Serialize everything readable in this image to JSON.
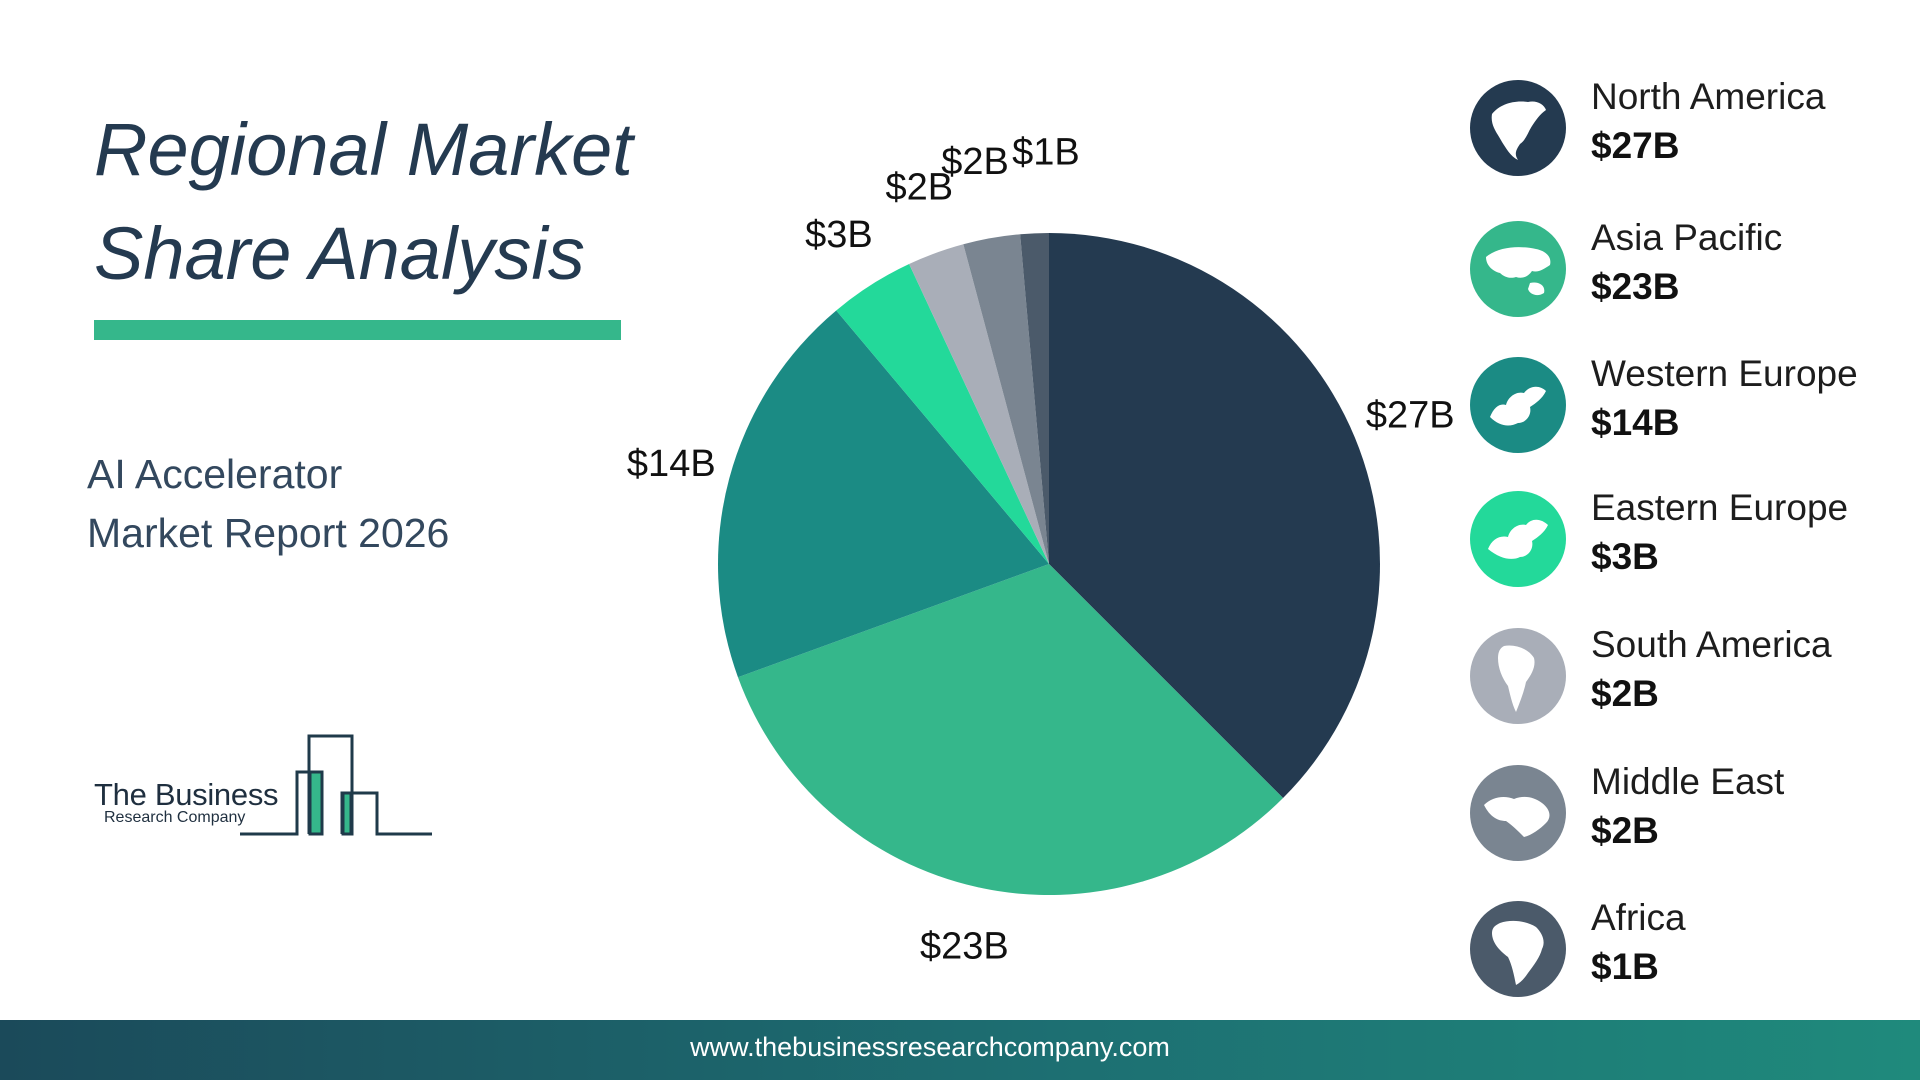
{
  "title": {
    "line1": "Regional Market",
    "line2": "Share Analysis"
  },
  "subtitle": {
    "line1": "AI Accelerator",
    "line2": "Market Report 2026"
  },
  "logo": {
    "main": "The Business",
    "sub": "Research Company"
  },
  "footer": {
    "url": "www.thebusinessresearchcompany.com"
  },
  "chart_data": {
    "type": "pie",
    "start_angle": "12 o'clock",
    "direction": "clockwise",
    "slices": [
      {
        "name": "North America",
        "value": 27,
        "label": "$27B",
        "color": "#243a50"
      },
      {
        "name": "Asia Pacific",
        "value": 23,
        "label": "$23B",
        "color": "#35b78b"
      },
      {
        "name": "Western Europe",
        "value": 14,
        "label": "$14B",
        "color": "#1b8b84"
      },
      {
        "name": "Eastern Europe",
        "value": 3,
        "label": "$3B",
        "color": "#23d99a"
      },
      {
        "name": "South America",
        "value": 2,
        "label": "$2B",
        "color": "#a9aeb8"
      },
      {
        "name": "Middle East",
        "value": 2,
        "label": "$2B",
        "color": "#7a8591"
      },
      {
        "name": "Africa",
        "value": 1,
        "label": "$1B",
        "color": "#4b5a6a"
      }
    ]
  },
  "legend": {
    "items": [
      {
        "name": "North America",
        "value": "$27B",
        "color": "#243a50",
        "icon": "north-america-icon"
      },
      {
        "name": "Asia Pacific",
        "value": "$23B",
        "color": "#35b78b",
        "icon": "asia-pacific-icon"
      },
      {
        "name": "Western Europe",
        "value": "$14B",
        "color": "#1b8b84",
        "icon": "western-europe-icon"
      },
      {
        "name": "Eastern Europe",
        "value": "$3B",
        "color": "#23d99a",
        "icon": "eastern-europe-icon"
      },
      {
        "name": "South America",
        "value": "$2B",
        "color": "#a9aeb8",
        "icon": "south-america-icon"
      },
      {
        "name": "Middle East",
        "value": "$2B",
        "color": "#7a8591",
        "icon": "middle-east-icon"
      },
      {
        "name": "Africa",
        "value": "$1B",
        "color": "#4b5a6a",
        "icon": "africa-icon"
      }
    ]
  }
}
